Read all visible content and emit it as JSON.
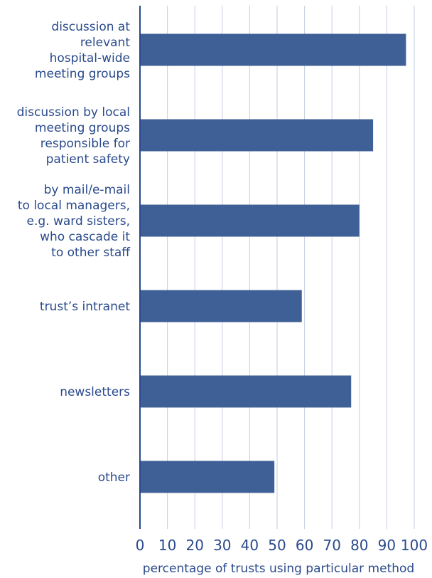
{
  "chart_data": {
    "type": "bar",
    "orientation": "horizontal",
    "categories": [
      [
        "discussion at",
        "relevant",
        "hospital-wide",
        "meeting groups"
      ],
      [
        "discussion by local",
        "meeting groups",
        "responsible for",
        "patient safety"
      ],
      [
        "by mail/e-mail",
        "to local managers,",
        "e.g. ward sisters,",
        "who cascade it",
        "to other staff"
      ],
      [
        "trust’s intranet"
      ],
      [
        "newsletters"
      ],
      [
        "other"
      ]
    ],
    "values": [
      97,
      85,
      80,
      59,
      77,
      49
    ],
    "xlim": [
      0,
      100
    ],
    "xticks": [
      0,
      10,
      20,
      30,
      40,
      50,
      60,
      70,
      80,
      90,
      100
    ],
    "xlabel": "percentage of trusts using particular method",
    "grid": "vertical",
    "colors": {
      "bar": "#3f6096",
      "text": "#2a4a8c",
      "axis": "#2a4a8c",
      "grid": "#c5cee0"
    }
  }
}
